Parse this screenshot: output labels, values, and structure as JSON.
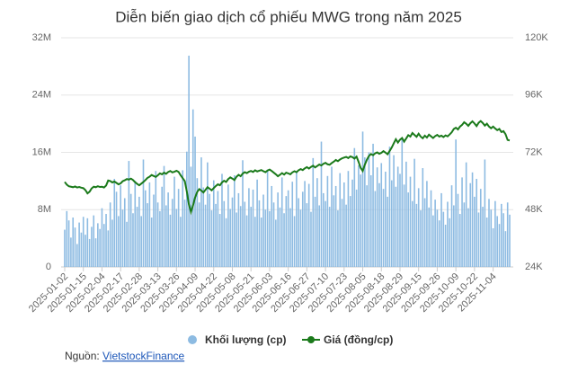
{
  "chart_data": {
    "type": "combo",
    "title": "Diễn biến giao dịch cổ phiếu MWG trong năm 2025",
    "categories": [
      "2025-01-02",
      null,
      null,
      null,
      null,
      null,
      null,
      null,
      null,
      "2025-01-15",
      null,
      null,
      null,
      null,
      null,
      null,
      null,
      null,
      "2025-02-04",
      null,
      null,
      null,
      null,
      null,
      null,
      null,
      null,
      "2025-02-17",
      null,
      null,
      null,
      null,
      null,
      null,
      null,
      null,
      "2025-02-28",
      null,
      null,
      null,
      null,
      null,
      null,
      null,
      null,
      "2025-03-13",
      null,
      null,
      null,
      null,
      null,
      null,
      null,
      null,
      "2025-03-26",
      null,
      null,
      null,
      null,
      null,
      null,
      null,
      null,
      "2025-04-09",
      null,
      null,
      null,
      null,
      null,
      null,
      null,
      null,
      "2025-04-22",
      null,
      null,
      null,
      null,
      null,
      null,
      null,
      null,
      "2025-05-08",
      null,
      null,
      null,
      null,
      null,
      null,
      null,
      null,
      "2025-05-21",
      null,
      null,
      null,
      null,
      null,
      null,
      null,
      null,
      "2025-06-03",
      null,
      null,
      null,
      null,
      null,
      null,
      null,
      null,
      "2025-06-16",
      null,
      null,
      null,
      null,
      null,
      null,
      null,
      null,
      "2025-06-27",
      null,
      null,
      null,
      null,
      null,
      null,
      null,
      null,
      "2025-07-10",
      null,
      null,
      null,
      null,
      null,
      null,
      null,
      null,
      "2025-07-23",
      null,
      null,
      null,
      null,
      null,
      null,
      null,
      null,
      "2025-08-05",
      null,
      null,
      null,
      null,
      null,
      null,
      null,
      null,
      "2025-08-18",
      null,
      null,
      null,
      null,
      null,
      null,
      null,
      null,
      "2025-08-29",
      null,
      null,
      null,
      null,
      null,
      null,
      null,
      null,
      "2025-09-15",
      null,
      null,
      null,
      null,
      null,
      null,
      null,
      null,
      "2025-09-26",
      null,
      null,
      null,
      null,
      null,
      null,
      null,
      null,
      "2025-10-09",
      null,
      null,
      null,
      null,
      null,
      null,
      null,
      null,
      "2025-10-22",
      null,
      null,
      null,
      null,
      null,
      null,
      null,
      null,
      "2025-11-04",
      null,
      null,
      null,
      null,
      null,
      null,
      null,
      null
    ],
    "series": [
      {
        "name": "Khối lượng (cp)",
        "type": "bar",
        "color": "#8dbbe2",
        "values": [
          5.2,
          7.8,
          6.5,
          4.1,
          6.9,
          5.5,
          3.2,
          6.2,
          4.8,
          7.0,
          4.5,
          6.8,
          3.9,
          5.6,
          7.2,
          4.0,
          6.1,
          5.3,
          8.2,
          6.0,
          7.4,
          5.1,
          9.0,
          6.6,
          12.3,
          10.5,
          7.1,
          11.4,
          8.0,
          9.6,
          6.3,
          14.8,
          10.2,
          7.5,
          12.0,
          8.4,
          9.8,
          7.1,
          15.0,
          10.7,
          8.9,
          11.8,
          6.9,
          10.1,
          13.4,
          9.0,
          7.8,
          11.2,
          14.1,
          8.6,
          10.4,
          7.3,
          9.5,
          12.6,
          8.1,
          10.9,
          7.0,
          13.5,
          9.4,
          16.1,
          29.5,
          14.0,
          22.0,
          18.2,
          12.4,
          9.0,
          15.3,
          11.1,
          8.7,
          14.6,
          10.2,
          7.9,
          12.1,
          8.8,
          10.6,
          7.4,
          13.0,
          9.2,
          6.8,
          11.5,
          8.1,
          9.7,
          12.8,
          7.6,
          10.3,
          8.5,
          14.9,
          9.1,
          7.2,
          11.0,
          8.4,
          10.8,
          7.0,
          12.2,
          9.3,
          6.9,
          10.1,
          8.0,
          13.6,
          7.8,
          11.3,
          9.0,
          6.6,
          10.4,
          8.3,
          12.5,
          7.5,
          9.9,
          10.7,
          8.2,
          11.9,
          7.1,
          13.2,
          9.6,
          8.0,
          10.5,
          12.0,
          8.9,
          11.6,
          7.7,
          15.2,
          9.8,
          12.4,
          8.6,
          17.5,
          10.3,
          9.2,
          12.7,
          8.4,
          14.0,
          10.0,
          11.3,
          7.9,
          13.1,
          9.5,
          11.8,
          8.7,
          13.4,
          9.9,
          12.2,
          16.6,
          10.8,
          14.2,
          12.9,
          18.9,
          15.3,
          11.4,
          16.0,
          12.8,
          17.2,
          10.6,
          13.9,
          11.7,
          14.5,
          10.9,
          13.3,
          9.8,
          16.8,
          12.1,
          15.6,
          11.2,
          14.0,
          13.0,
          17.9,
          11.5,
          14.7,
          10.4,
          12.6,
          9.2,
          15.1,
          8.8,
          11.0,
          7.9,
          13.8,
          9.6,
          12.0,
          8.3,
          10.7,
          7.2,
          9.4,
          8.0,
          6.5,
          10.3,
          7.7,
          5.9,
          9.1,
          6.8,
          11.4,
          8.6,
          17.8,
          10.2,
          7.4,
          12.5,
          9.0,
          14.6,
          8.2,
          11.7,
          13.2,
          9.8,
          12.3,
          7.6,
          10.9,
          8.4,
          15.0,
          6.9,
          9.5,
          8.0,
          5.4,
          9.2,
          7.1,
          6.0,
          8.8,
          7.5,
          5.0,
          9.0,
          7.3
        ]
      },
      {
        "name": "Giá (đồng/cp)",
        "type": "line",
        "axis": "y2",
        "color": "#1b7a1b",
        "values": [
          59.6,
          58.5,
          57.8,
          57.6,
          57.4,
          57.7,
          57.3,
          57.5,
          57.2,
          57.0,
          56.2,
          54.8,
          55.5,
          56.9,
          57.6,
          57.4,
          57.8,
          57.5,
          57.6,
          57.3,
          58.1,
          60.2,
          60.0,
          59.4,
          59.8,
          59.2,
          58.6,
          59.0,
          59.9,
          60.3,
          60.8,
          60.6,
          61.0,
          60.4,
          59.5,
          58.8,
          58.2,
          58.9,
          59.6,
          60.4,
          61.3,
          61.8,
          62.5,
          62.1,
          61.7,
          62.4,
          63.2,
          62.8,
          63.5,
          63.0,
          63.8,
          64.2,
          63.6,
          63.9,
          64.3,
          63.8,
          62.4,
          61.2,
          60.0,
          55.6,
          50.2,
          47.0,
          49.8,
          53.1,
          55.4,
          56.6,
          56.0,
          55.2,
          56.3,
          57.4,
          56.8,
          56.1,
          57.0,
          57.9,
          58.6,
          58.2,
          59.4,
          60.1,
          59.6,
          60.8,
          61.5,
          61.0,
          60.4,
          61.8,
          62.6,
          62.0,
          63.1,
          63.7,
          63.3,
          63.9,
          64.2,
          63.8,
          64.5,
          64.0,
          64.3,
          64.6,
          64.1,
          63.7,
          64.4,
          64.8,
          64.2,
          63.5,
          62.8,
          62.0,
          62.6,
          63.3,
          62.7,
          63.5,
          63.2,
          62.8,
          63.6,
          64.1,
          63.7,
          64.5,
          65.0,
          64.6,
          65.3,
          65.8,
          65.2,
          65.9,
          66.4,
          65.7,
          66.3,
          66.9,
          66.5,
          67.2,
          67.6,
          67.0,
          66.8,
          67.5,
          68.1,
          68.8,
          68.3,
          69.0,
          69.5,
          69.8,
          70.1,
          69.6,
          70.3,
          70.0,
          69.4,
          70.2,
          68.0,
          65.5,
          64.2,
          66.8,
          68.9,
          70.5,
          71.3,
          70.8,
          71.6,
          72.0,
          71.4,
          71.8,
          72.5,
          71.9,
          71.2,
          72.6,
          74.0,
          75.8,
          77.5,
          76.1,
          77.3,
          78.0,
          76.5,
          77.8,
          79.2,
          78.6,
          80.1,
          79.3,
          78.5,
          79.8,
          78.6,
          77.9,
          79.0,
          78.2,
          79.4,
          78.7,
          78.0,
          78.8,
          79.3,
          78.6,
          79.0,
          78.4,
          79.1,
          78.7,
          79.5,
          80.4,
          81.8,
          82.3,
          81.6,
          82.8,
          83.5,
          84.6,
          84.0,
          83.1,
          84.2,
          85.0,
          84.1,
          83.0,
          84.4,
          85.1,
          84.3,
          83.2,
          84.0,
          82.8,
          82.1,
          82.8,
          82.0,
          81.3,
          81.8,
          80.5,
          80.9,
          79.6,
          77.2,
          77.0
        ]
      }
    ],
    "ylim": [
      0,
      32
    ],
    "yticks": [
      0,
      {
        "value": 8,
        "label": "8M"
      },
      {
        "value": 16,
        "label": "16M"
      },
      {
        "value": 24,
        "label": "24M"
      },
      {
        "value": 32,
        "label": "32M"
      }
    ],
    "y2lim": [
      24,
      120
    ],
    "y2ticks": [
      {
        "value": 24,
        "label": "24K"
      },
      {
        "value": 48,
        "label": "48K"
      },
      {
        "value": 72,
        "label": "72K"
      },
      {
        "value": 96,
        "label": "96K"
      },
      {
        "value": 120,
        "label": "120K"
      }
    ],
    "grid": true
  },
  "source": {
    "prefix": "Nguồn:",
    "link": "VietstockFinance"
  }
}
